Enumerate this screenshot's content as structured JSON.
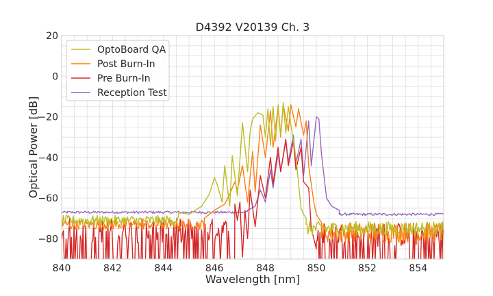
{
  "chart_data": {
    "type": "line",
    "title": "D4392 V20139 Ch. 3",
    "xlabel": "Wavelength [nm]",
    "ylabel": "Optical Power [dB]",
    "xlim": [
      840,
      855
    ],
    "ylim": [
      -90,
      20
    ],
    "xticks": [
      840,
      842,
      844,
      846,
      848,
      850,
      852,
      854
    ],
    "yticks": [
      20,
      0,
      -20,
      -40,
      -60,
      -80
    ],
    "ytick_labels": [
      "20",
      "0",
      "−20",
      "−40",
      "−60",
      "−80"
    ],
    "grid": true,
    "legend_position": "top-left",
    "series": [
      {
        "name": "OptoBoard QA",
        "color": "#bcbd22",
        "noise_floor": -71,
        "x": [
          844.6,
          845.0,
          845.5,
          845.8,
          846.0,
          846.1,
          846.3,
          846.4,
          846.6,
          846.7,
          846.9,
          847.1,
          847.3,
          847.4,
          847.5,
          847.7,
          847.9,
          848.0,
          848.1,
          848.2,
          848.3,
          848.4,
          848.5,
          848.6,
          848.7,
          848.8,
          848.9,
          849.0,
          849.2,
          849.4,
          849.5,
          849.6
        ],
        "y": [
          -67,
          -68,
          -64,
          -58,
          -50,
          -53,
          -62,
          -44,
          -64,
          -39,
          -59,
          -23,
          -47,
          -27,
          -21,
          -18,
          -19,
          -30,
          -16,
          -34,
          -15,
          -32,
          -14,
          -29,
          -13,
          -28,
          -15,
          -24,
          -40,
          -65,
          -68,
          -70
        ]
      },
      {
        "name": "Post Burn-In",
        "color": "#ff7f0e",
        "noise_floor": -73,
        "x": [
          845.6,
          846.0,
          846.4,
          846.6,
          846.8,
          846.9,
          847.1,
          847.3,
          847.5,
          847.6,
          847.8,
          848.0,
          848.2,
          848.3,
          848.5,
          848.6,
          848.7,
          848.9,
          849.0,
          849.2,
          849.3,
          849.5,
          849.6,
          849.7,
          849.9,
          850.0,
          850.2
        ],
        "y": [
          -70,
          -66,
          -63,
          -58,
          -52,
          -56,
          -44,
          -62,
          -37,
          -57,
          -24,
          -40,
          -17,
          -35,
          -15,
          -30,
          -14,
          -27,
          -14,
          -25,
          -16,
          -29,
          -22,
          -44,
          -62,
          -68,
          -72
        ]
      },
      {
        "name": "Pre Burn-In",
        "color": "#d62728",
        "noise_floor": -88,
        "x": [
          846.8,
          846.9,
          847.0,
          847.1,
          847.2,
          847.3,
          847.4,
          847.6,
          847.8,
          848.0,
          848.2,
          848.3,
          848.5,
          848.6,
          848.8,
          848.9,
          849.1,
          849.2,
          849.4,
          849.5,
          849.7,
          849.8,
          849.9,
          850.0
        ],
        "y": [
          -63,
          -71,
          -62,
          -89,
          -66,
          -80,
          -56,
          -74,
          -49,
          -60,
          -40,
          -53,
          -35,
          -47,
          -31,
          -44,
          -32,
          -46,
          -35,
          -52,
          -55,
          -75,
          -80,
          -85
        ]
      },
      {
        "name": "Reception Test",
        "color": "#9467bd",
        "noise_floor": -67,
        "x": [
          847.3,
          847.6,
          847.8,
          848.0,
          848.2,
          848.3,
          848.5,
          848.6,
          848.8,
          848.9,
          849.1,
          849.2,
          849.4,
          849.5,
          849.7,
          849.8,
          850.0,
          850.1,
          850.2,
          850.4,
          850.6,
          850.9
        ],
        "y": [
          -66,
          -64,
          -56,
          -62,
          -46,
          -55,
          -38,
          -47,
          -32,
          -42,
          -29,
          -43,
          -31,
          -49,
          -22,
          -44,
          -20,
          -21,
          -38,
          -60,
          -64,
          -66
        ]
      }
    ]
  }
}
